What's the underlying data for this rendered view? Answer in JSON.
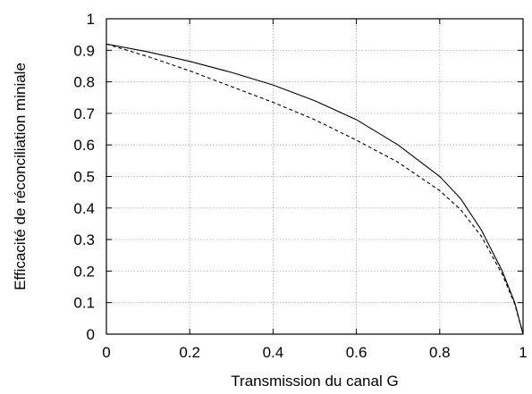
{
  "chart_data": {
    "type": "line",
    "title": "",
    "xlabel": "Transmission du canal G",
    "ylabel": "Efficacité de réconciliation miniale",
    "xlim": [
      0,
      1
    ],
    "ylim": [
      0,
      1
    ],
    "grid": true,
    "x_ticks": [
      "0",
      "0.2",
      "0.4",
      "0.6",
      "0.8",
      "1"
    ],
    "y_ticks": [
      "0",
      "0.1",
      "0.2",
      "0.3",
      "0.4",
      "0.5",
      "0.6",
      "0.7",
      "0.8",
      "0.9",
      "1"
    ],
    "series": [
      {
        "style": "solid",
        "color": "#000000",
        "x": [
          0,
          0.1,
          0.2,
          0.3,
          0.4,
          0.5,
          0.6,
          0.7,
          0.8,
          0.85,
          0.9,
          0.95,
          0.98,
          1.0
        ],
        "y": [
          0.92,
          0.895,
          0.865,
          0.83,
          0.79,
          0.74,
          0.68,
          0.6,
          0.5,
          0.43,
          0.33,
          0.2,
          0.1,
          0.0
        ]
      },
      {
        "style": "dashed",
        "color": "#000000",
        "x": [
          0,
          0.1,
          0.2,
          0.3,
          0.4,
          0.5,
          0.6,
          0.7,
          0.8,
          0.85,
          0.9,
          0.95,
          0.98,
          1.0
        ],
        "y": [
          0.92,
          0.88,
          0.835,
          0.785,
          0.735,
          0.68,
          0.615,
          0.545,
          0.455,
          0.395,
          0.31,
          0.19,
          0.095,
          0.0
        ]
      }
    ]
  }
}
